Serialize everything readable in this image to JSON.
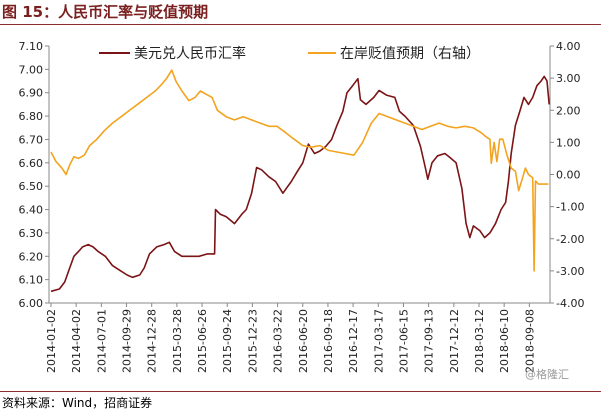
{
  "figure": {
    "title": "图 15：人民币汇率与贬值预期",
    "source": "资料来源：Wind，招商证券",
    "watermark": "@格隆汇"
  },
  "colors": {
    "usdcny": "#7b1416",
    "depreciation": "#f3a31e",
    "rule": "#8c2e2e",
    "axis": "#888888"
  },
  "chart_data": {
    "type": "line",
    "y_left": {
      "min": 6.0,
      "max": 7.1,
      "step": 0.1,
      "ticks": [
        "6.00",
        "6.10",
        "6.20",
        "6.30",
        "6.40",
        "6.50",
        "6.60",
        "6.70",
        "6.80",
        "6.90",
        "7.00",
        "7.10"
      ]
    },
    "y_right": {
      "min": -4.0,
      "max": 4.0,
      "step": 1.0,
      "ticks": [
        "-4.00",
        "-3.00",
        "-2.00",
        "-1.00",
        "0.00",
        "1.00",
        "2.00",
        "3.00",
        "4.00"
      ]
    },
    "x_ticks": [
      "2014-01-02",
      "2014-04-02",
      "2014-07-01",
      "2014-09-29",
      "2014-12-28",
      "2015-03-28",
      "2015-06-26",
      "2015-09-24",
      "2015-12-23",
      "2016-03-22",
      "2016-06-20",
      "2016-09-18",
      "2016-12-17",
      "2017-03-17",
      "2017-06-15",
      "2017-09-13",
      "2017-12-12",
      "2018-03-12",
      "2018-06-10",
      "2018-09-08"
    ],
    "legend": [
      "美元兑人民币汇率",
      "在岸贬值预期（右轴）"
    ],
    "grid": false,
    "series": [
      {
        "name": "美元兑人民币汇率",
        "axis": "left",
        "points": [
          [
            "2014-01-02",
            6.05
          ],
          [
            "2014-02-01",
            6.06
          ],
          [
            "2014-02-20",
            6.09
          ],
          [
            "2014-03-10",
            6.15
          ],
          [
            "2014-03-25",
            6.2
          ],
          [
            "2014-04-10",
            6.22
          ],
          [
            "2014-04-25",
            6.24
          ],
          [
            "2014-05-15",
            6.25
          ],
          [
            "2014-06-01",
            6.24
          ],
          [
            "2014-06-20",
            6.22
          ],
          [
            "2014-07-15",
            6.2
          ],
          [
            "2014-08-10",
            6.16
          ],
          [
            "2014-09-05",
            6.14
          ],
          [
            "2014-10-01",
            6.12
          ],
          [
            "2014-10-20",
            6.11
          ],
          [
            "2014-11-15",
            6.12
          ],
          [
            "2014-12-01",
            6.15
          ],
          [
            "2014-12-20",
            6.21
          ],
          [
            "2015-01-15",
            6.24
          ],
          [
            "2015-02-10",
            6.25
          ],
          [
            "2015-03-01",
            6.26
          ],
          [
            "2015-03-20",
            6.22
          ],
          [
            "2015-04-15",
            6.2
          ],
          [
            "2015-05-15",
            6.2
          ],
          [
            "2015-06-15",
            6.2
          ],
          [
            "2015-07-15",
            6.21
          ],
          [
            "2015-08-10",
            6.21
          ],
          [
            "2015-08-13",
            6.4
          ],
          [
            "2015-08-30",
            6.38
          ],
          [
            "2015-09-20",
            6.37
          ],
          [
            "2015-10-20",
            6.34
          ],
          [
            "2015-11-15",
            6.38
          ],
          [
            "2015-12-01",
            6.4
          ],
          [
            "2015-12-20",
            6.47
          ],
          [
            "2016-01-07",
            6.58
          ],
          [
            "2016-01-25",
            6.57
          ],
          [
            "2016-02-20",
            6.54
          ],
          [
            "2016-03-15",
            6.52
          ],
          [
            "2016-04-10",
            6.47
          ],
          [
            "2016-05-10",
            6.52
          ],
          [
            "2016-05-30",
            6.56
          ],
          [
            "2016-06-20",
            6.6
          ],
          [
            "2016-07-10",
            6.68
          ],
          [
            "2016-08-01",
            6.64
          ],
          [
            "2016-08-20",
            6.65
          ],
          [
            "2016-09-10",
            6.67
          ],
          [
            "2016-10-01",
            6.7
          ],
          [
            "2016-10-20",
            6.76
          ],
          [
            "2016-11-10",
            6.82
          ],
          [
            "2016-11-25",
            6.9
          ],
          [
            "2016-12-15",
            6.93
          ],
          [
            "2017-01-03",
            6.96
          ],
          [
            "2017-01-12",
            6.87
          ],
          [
            "2017-02-01",
            6.85
          ],
          [
            "2017-03-01",
            6.88
          ],
          [
            "2017-03-20",
            6.91
          ],
          [
            "2017-04-15",
            6.89
          ],
          [
            "2017-05-15",
            6.88
          ],
          [
            "2017-06-01",
            6.82
          ],
          [
            "2017-06-20",
            6.8
          ],
          [
            "2017-07-20",
            6.76
          ],
          [
            "2017-08-15",
            6.67
          ],
          [
            "2017-09-01",
            6.58
          ],
          [
            "2017-09-10",
            6.53
          ],
          [
            "2017-09-25",
            6.6
          ],
          [
            "2017-10-15",
            6.63
          ],
          [
            "2017-11-10",
            6.64
          ],
          [
            "2017-12-01",
            6.62
          ],
          [
            "2017-12-20",
            6.6
          ],
          [
            "2018-01-10",
            6.49
          ],
          [
            "2018-01-25",
            6.34
          ],
          [
            "2018-02-07",
            6.28
          ],
          [
            "2018-02-20",
            6.33
          ],
          [
            "2018-03-15",
            6.31
          ],
          [
            "2018-04-01",
            6.28
          ],
          [
            "2018-04-20",
            6.3
          ],
          [
            "2018-05-10",
            6.34
          ],
          [
            "2018-05-30",
            6.4
          ],
          [
            "2018-06-15",
            6.43
          ],
          [
            "2018-06-25",
            6.52
          ],
          [
            "2018-07-05",
            6.64
          ],
          [
            "2018-07-20",
            6.76
          ],
          [
            "2018-08-05",
            6.82
          ],
          [
            "2018-08-20",
            6.88
          ],
          [
            "2018-09-05",
            6.85
          ],
          [
            "2018-09-20",
            6.88
          ],
          [
            "2018-10-05",
            6.93
          ],
          [
            "2018-10-20",
            6.95
          ],
          [
            "2018-10-31",
            6.97
          ],
          [
            "2018-11-10",
            6.95
          ],
          [
            "2018-11-18",
            6.85
          ]
        ]
      },
      {
        "name": "在岸贬值预期（右轴）",
        "axis": "right",
        "points": [
          [
            "2014-01-02",
            0.7
          ],
          [
            "2014-01-20",
            0.4
          ],
          [
            "2014-02-10",
            0.2
          ],
          [
            "2014-02-25",
            0.0
          ],
          [
            "2014-03-10",
            0.3
          ],
          [
            "2014-03-25",
            0.55
          ],
          [
            "2014-04-10",
            0.5
          ],
          [
            "2014-05-01",
            0.6
          ],
          [
            "2014-05-20",
            0.9
          ],
          [
            "2014-06-15",
            1.1
          ],
          [
            "2014-07-10",
            1.35
          ],
          [
            "2014-08-10",
            1.6
          ],
          [
            "2014-09-10",
            1.8
          ],
          [
            "2014-10-10",
            2.0
          ],
          [
            "2014-11-10",
            2.2
          ],
          [
            "2014-12-10",
            2.4
          ],
          [
            "2015-01-10",
            2.6
          ],
          [
            "2015-02-01",
            2.8
          ],
          [
            "2015-02-20",
            3.0
          ],
          [
            "2015-03-10",
            3.25
          ],
          [
            "2015-03-25",
            2.9
          ],
          [
            "2015-04-15",
            2.6
          ],
          [
            "2015-05-10",
            2.3
          ],
          [
            "2015-06-01",
            2.4
          ],
          [
            "2015-06-20",
            2.6
          ],
          [
            "2015-07-10",
            2.5
          ],
          [
            "2015-08-01",
            2.4
          ],
          [
            "2015-08-20",
            2.0
          ],
          [
            "2015-09-20",
            1.8
          ],
          [
            "2015-10-20",
            1.7
          ],
          [
            "2015-11-20",
            1.8
          ],
          [
            "2015-12-20",
            1.7
          ],
          [
            "2016-01-20",
            1.6
          ],
          [
            "2016-02-20",
            1.5
          ],
          [
            "2016-03-20",
            1.5
          ],
          [
            "2016-04-20",
            1.3
          ],
          [
            "2016-05-20",
            1.1
          ],
          [
            "2016-06-20",
            0.9
          ],
          [
            "2016-07-20",
            0.85
          ],
          [
            "2016-08-20",
            0.9
          ],
          [
            "2016-09-20",
            0.75
          ],
          [
            "2016-10-20",
            0.7
          ],
          [
            "2016-11-20",
            0.65
          ],
          [
            "2016-12-20",
            0.6
          ],
          [
            "2017-01-20",
            1.0
          ],
          [
            "2017-02-20",
            1.6
          ],
          [
            "2017-03-20",
            1.9
          ],
          [
            "2017-04-20",
            1.8
          ],
          [
            "2017-05-20",
            1.7
          ],
          [
            "2017-06-20",
            1.6
          ],
          [
            "2017-07-20",
            1.5
          ],
          [
            "2017-08-20",
            1.4
          ],
          [
            "2017-09-20",
            1.5
          ],
          [
            "2017-10-20",
            1.6
          ],
          [
            "2017-11-20",
            1.5
          ],
          [
            "2017-12-20",
            1.45
          ],
          [
            "2018-01-20",
            1.5
          ],
          [
            "2018-02-20",
            1.45
          ],
          [
            "2018-03-20",
            1.3
          ],
          [
            "2018-04-10",
            1.15
          ],
          [
            "2018-04-20",
            1.1
          ],
          [
            "2018-04-25",
            0.35
          ],
          [
            "2018-05-05",
            1.0
          ],
          [
            "2018-05-15",
            0.4
          ],
          [
            "2018-05-25",
            1.1
          ],
          [
            "2018-06-05",
            1.1
          ],
          [
            "2018-06-20",
            0.6
          ],
          [
            "2018-07-05",
            0.2
          ],
          [
            "2018-07-20",
            0.1
          ],
          [
            "2018-08-01",
            -0.5
          ],
          [
            "2018-08-15",
            -0.1
          ],
          [
            "2018-08-25",
            0.2
          ],
          [
            "2018-09-05",
            0.0
          ],
          [
            "2018-09-20",
            -0.1
          ],
          [
            "2018-09-25",
            -3.0
          ],
          [
            "2018-09-30",
            -0.2
          ],
          [
            "2018-10-10",
            -0.3
          ],
          [
            "2018-10-25",
            -0.3
          ],
          [
            "2018-11-05",
            -0.3
          ],
          [
            "2018-11-15",
            -0.3
          ]
        ]
      }
    ]
  }
}
